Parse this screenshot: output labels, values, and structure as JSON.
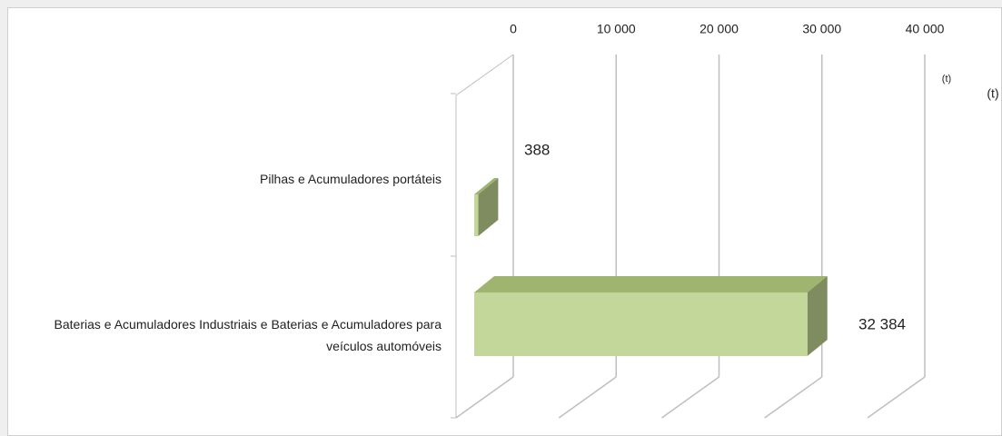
{
  "chart_data": {
    "type": "bar3d_horizontal",
    "categories": [
      "Pilhas e Acumuladores portáteis",
      "Baterias e Acumuladores Industriais e Baterias e Acumuladores para veículos automóveis"
    ],
    "values": [
      388,
      32384
    ],
    "value_labels": [
      "388",
      "32 384"
    ],
    "color": "#c4d79b",
    "xlim": [
      0,
      40000
    ],
    "xticks": [
      0,
      {
        "value": 10000,
        "label": "10 000"
      },
      {
        "value": 20000,
        "label": "20 000"
      },
      {
        "value": 30000,
        "label": "30 000"
      },
      {
        "value": 40000,
        "label": "40 000"
      }
    ],
    "annotations": [
      "(t)",
      "(t)"
    ],
    "grid": true
  }
}
